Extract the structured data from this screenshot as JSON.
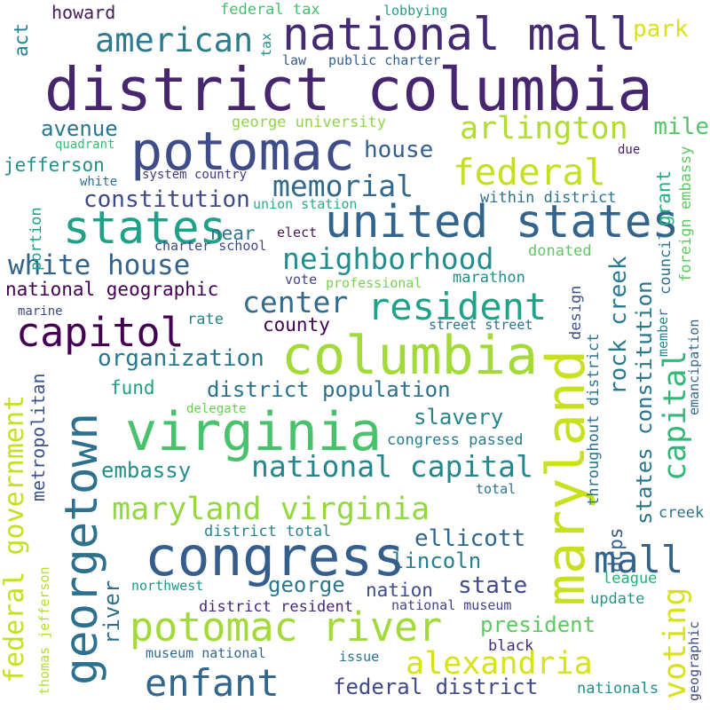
{
  "words": [
    {
      "text": "district columbia",
      "color": "#46266f"
    },
    {
      "text": "national mall",
      "color": "#432a72"
    },
    {
      "text": "american",
      "color": "#2a7b8e"
    },
    {
      "text": "howard",
      "color": "#441d5c"
    },
    {
      "text": "federal tax",
      "color": "#46c06f"
    },
    {
      "text": "lobbying",
      "color": "#2b9a87"
    },
    {
      "text": "park",
      "color": "#d9e21b"
    },
    {
      "text": "law",
      "color": "#38598c"
    },
    {
      "text": "public charter",
      "color": "#34608d"
    },
    {
      "text": "potomac",
      "color": "#3e4c8a"
    },
    {
      "text": "arlington",
      "color": "#b0dd2f"
    },
    {
      "text": "mile",
      "color": "#52c569"
    },
    {
      "text": "george university",
      "color": "#8ed645"
    },
    {
      "text": "avenue",
      "color": "#2b758e"
    },
    {
      "text": "house",
      "color": "#355f8d"
    },
    {
      "text": "quadrant",
      "color": "#3bbb75"
    },
    {
      "text": "due",
      "color": "#481b6d"
    },
    {
      "text": "jefferson",
      "color": "#21908d"
    },
    {
      "text": "system country",
      "color": "#443983"
    },
    {
      "text": "federal",
      "color": "#c5e021"
    },
    {
      "text": "white",
      "color": "#2e6e8e"
    },
    {
      "text": "memorial",
      "color": "#31688e"
    },
    {
      "text": "constitution",
      "color": "#3f4889"
    },
    {
      "text": "union station",
      "color": "#29af7f"
    },
    {
      "text": "within district",
      "color": "#2c728e"
    },
    {
      "text": "united states",
      "color": "#32648e"
    },
    {
      "text": "states",
      "color": "#1fa088"
    },
    {
      "text": "near",
      "color": "#2b758e"
    },
    {
      "text": "elect",
      "color": "#471365"
    },
    {
      "text": "charter school",
      "color": "#3f4788"
    },
    {
      "text": "neighborhood",
      "color": "#228d8d"
    },
    {
      "text": "donated",
      "color": "#5ec962"
    },
    {
      "text": "white house",
      "color": "#33638d"
    },
    {
      "text": "national geographic",
      "color": "#440154"
    },
    {
      "text": "vote",
      "color": "#3f4889"
    },
    {
      "text": "professional",
      "color": "#7ad151"
    },
    {
      "text": "marathon",
      "color": "#228c8d"
    },
    {
      "text": "center",
      "color": "#306a8e"
    },
    {
      "text": "resident",
      "color": "#1fa287"
    },
    {
      "text": "marine",
      "color": "#3f4889"
    },
    {
      "text": "capitol",
      "color": "#440154"
    },
    {
      "text": "rate",
      "color": "#26828e"
    },
    {
      "text": "county",
      "color": "#440154"
    },
    {
      "text": "street street",
      "color": "#2d708e"
    },
    {
      "text": "columbia",
      "color": "#a2da37"
    },
    {
      "text": "organization",
      "color": "#2a788e"
    },
    {
      "text": "fund",
      "color": "#1fa187"
    },
    {
      "text": "district population",
      "color": "#2c718e"
    },
    {
      "text": "delegate",
      "color": "#6ccd5a"
    },
    {
      "text": "virginia",
      "color": "#4ac16d"
    },
    {
      "text": "slavery",
      "color": "#25848e"
    },
    {
      "text": "congress passed",
      "color": "#287c8e"
    },
    {
      "text": "national capital",
      "color": "#24878e"
    },
    {
      "text": "embassy",
      "color": "#21908d"
    },
    {
      "text": "total",
      "color": "#2d708e"
    },
    {
      "text": "maryland virginia",
      "color": "#93d741"
    },
    {
      "text": "ellicott",
      "color": "#31668e"
    },
    {
      "text": "district total",
      "color": "#26828e"
    },
    {
      "text": "lincoln",
      "color": "#277f8e"
    },
    {
      "text": "congress",
      "color": "#355e8d"
    },
    {
      "text": "mall",
      "color": "#33638d"
    },
    {
      "text": "creek",
      "color": "#2c718e"
    },
    {
      "text": "george",
      "color": "#2a788e"
    },
    {
      "text": "state",
      "color": "#3e4a89"
    },
    {
      "text": "northwest",
      "color": "#21918c"
    },
    {
      "text": "nation",
      "color": "#3d4d8a"
    },
    {
      "text": "league",
      "color": "#25ab82"
    },
    {
      "text": "update",
      "color": "#1f9a8a"
    },
    {
      "text": "district resident",
      "color": "#482576"
    },
    {
      "text": "national museum",
      "color": "#414487"
    },
    {
      "text": "potomac river",
      "color": "#a2da37"
    },
    {
      "text": "president",
      "color": "#5ec962"
    },
    {
      "text": "black",
      "color": "#472c7a"
    },
    {
      "text": "museum national",
      "color": "#31688e"
    },
    {
      "text": "issue",
      "color": "#2c728e"
    },
    {
      "text": "alexandria",
      "color": "#d8e219"
    },
    {
      "text": "enfant",
      "color": "#31668e"
    },
    {
      "text": "federal district",
      "color": "#3e4a89"
    },
    {
      "text": "nationals",
      "color": "#21918c"
    },
    {
      "text": "maryland",
      "color": "#c8e020"
    },
    {
      "text": "georgetown",
      "color": "#2d718e"
    },
    {
      "text": "federal government",
      "color": "#c5e021"
    },
    {
      "text": "metropolitan",
      "color": "#3b528b"
    },
    {
      "text": "thomas jefferson",
      "color": "#b5de2b"
    },
    {
      "text": "portion",
      "color": "#1fa088"
    },
    {
      "text": "act",
      "color": "#26828e"
    },
    {
      "text": "tax",
      "color": "#228d8d"
    },
    {
      "text": "river",
      "color": "#2e6f8e"
    },
    {
      "text": "rock creek",
      "color": "#2a7b8e"
    },
    {
      "text": "capital",
      "color": "#35b779"
    },
    {
      "text": "states constitution",
      "color": "#2a768e"
    },
    {
      "text": "grant",
      "color": "#29af7f"
    },
    {
      "text": "voting",
      "color": "#d8e219"
    },
    {
      "text": "dcps",
      "color": "#355e8d"
    },
    {
      "text": "design",
      "color": "#3b528b"
    },
    {
      "text": "throughout district",
      "color": "#2c728e"
    },
    {
      "text": "council",
      "color": "#2d708e"
    },
    {
      "text": "foreign embassy",
      "color": "#5ec962"
    },
    {
      "text": "member",
      "color": "#26828e"
    },
    {
      "text": "emancipation",
      "color": "#31688e"
    },
    {
      "text": "geographic",
      "color": "#3e4a89"
    }
  ]
}
